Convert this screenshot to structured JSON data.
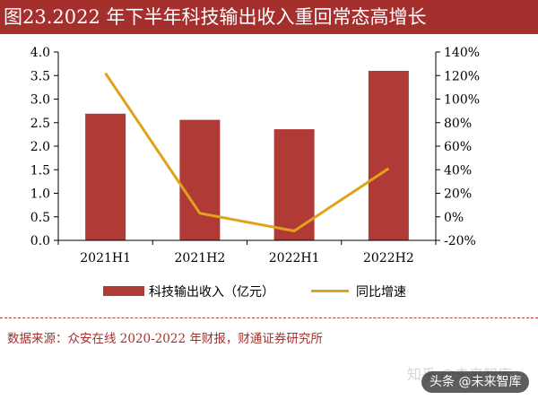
{
  "header": {
    "title": "图23.2022 年下半年科技输出收入重回常态高增长"
  },
  "chart_data": {
    "type": "bar+line",
    "categories": [
      "2021H1",
      "2021H2",
      "2022H1",
      "2022H2"
    ],
    "series": [
      {
        "name": "科技输出收入（亿元）",
        "type": "bar",
        "axis": "left",
        "color": "#b03a36",
        "values": [
          2.69,
          2.56,
          2.36,
          3.6
        ]
      },
      {
        "name": "同比增速",
        "type": "line",
        "axis": "right",
        "color": "#e0a21a",
        "values": [
          122,
          3,
          -12,
          41
        ]
      }
    ],
    "left_axis": {
      "min": 0,
      "max": 4,
      "ticks": [
        "0.0",
        "0.5",
        "1.0",
        "1.5",
        "2.0",
        "2.5",
        "3.0",
        "3.5",
        "4.0"
      ]
    },
    "right_axis": {
      "min": -20,
      "max": 140,
      "ticks": [
        "-20%",
        "0%",
        "20%",
        "40%",
        "60%",
        "80%",
        "100%",
        "120%",
        "140%"
      ]
    },
    "grid": false,
    "legend_position": "bottom"
  },
  "source": {
    "text": "数据来源：众安在线 2020-2022 年财报，财通证券研究所"
  },
  "watermark": {
    "site": "知乎 @未来智库",
    "badge": "头条 @未来智库"
  }
}
